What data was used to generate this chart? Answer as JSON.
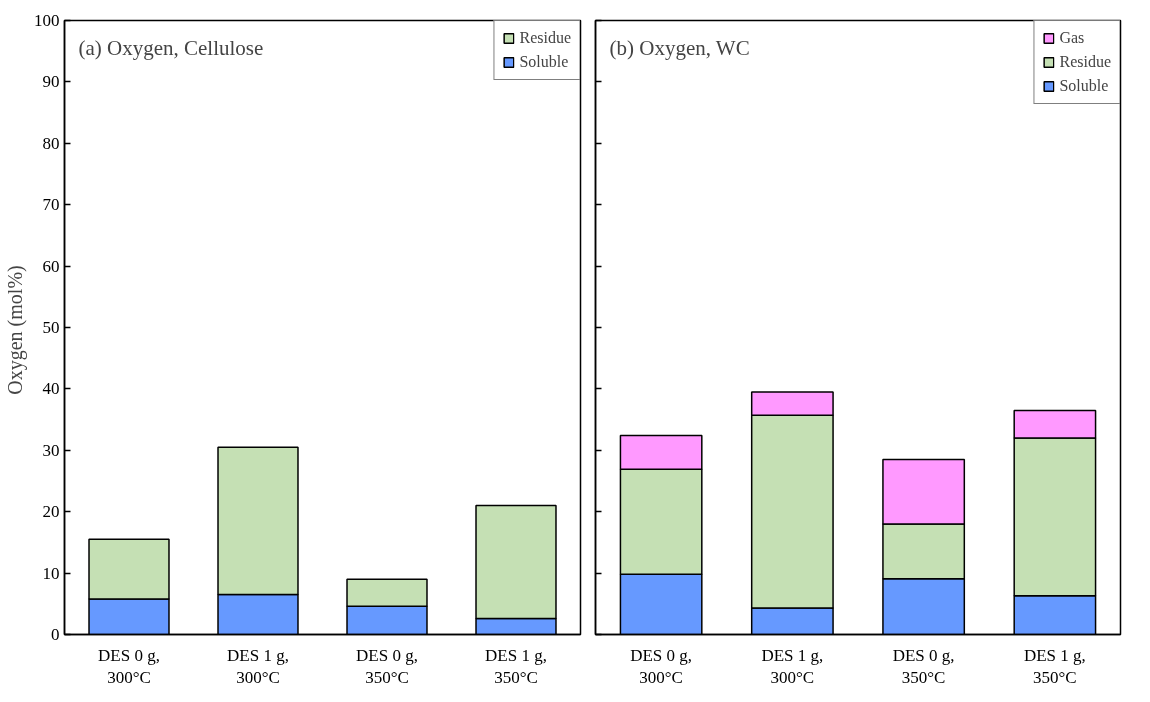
{
  "chart_data": [
    {
      "type": "bar",
      "stacked": true,
      "title": "(a) Oxygen,  Cellulose",
      "ylabel": "Oxygen  (mol%)",
      "categories": [
        "DES 0 g,\n300°C",
        "DES 1 g,\n300°C",
        "DES 0 g,\n350°C",
        "DES 1 g,\n350°C"
      ],
      "series": [
        {
          "name": "Soluble",
          "color": "#6699ff",
          "values": [
            5.8,
            6.5,
            4.6,
            2.6
          ]
        },
        {
          "name": "Residue",
          "color": "#c5e0b4",
          "values": [
            9.7,
            24.0,
            4.4,
            18.4
          ]
        }
      ],
      "ylim": [
        0,
        100
      ],
      "yticks": [
        0,
        10,
        20,
        30,
        40,
        50,
        60,
        70,
        80,
        90,
        100
      ],
      "grid": false,
      "legend": "top right"
    },
    {
      "type": "bar",
      "stacked": true,
      "title": "(b) Oxygen,  WC",
      "categories": [
        "DES 0 g,\n300°C",
        "DES 1 g,\n300°C",
        "DES 0 g,\n350°C",
        "DES 1 g,\n350°C"
      ],
      "series": [
        {
          "name": "Soluble",
          "color": "#6699ff",
          "values": [
            9.8,
            4.3,
            9.1,
            6.3
          ]
        },
        {
          "name": "Residue",
          "color": "#c5e0b4",
          "values": [
            17.1,
            31.4,
            8.9,
            25.7
          ]
        },
        {
          "name": "Gas",
          "color": "#ff99ff",
          "values": [
            5.5,
            3.8,
            10.5,
            4.5
          ]
        }
      ],
      "ylim": [
        0,
        100
      ],
      "yticks": [
        0,
        10,
        20,
        30,
        40,
        50,
        60,
        70,
        80,
        90,
        100
      ],
      "grid": false,
      "legend": "top right",
      "tick_labels": "x"
    }
  ]
}
